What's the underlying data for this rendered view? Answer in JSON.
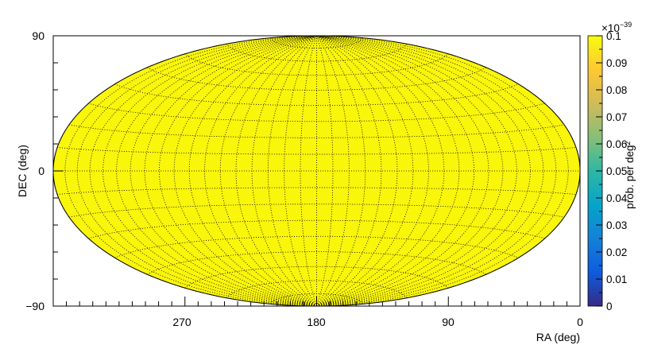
{
  "chart_data": {
    "type": "heatmap",
    "projection": "hammer-aitoff",
    "xlabel": "RA (deg)",
    "ylabel": "DEC (deg)",
    "x_range": [
      360,
      0
    ],
    "y_range": [
      -90,
      90
    ],
    "x_tick_labels": [
      "270",
      "180",
      "90",
      "0"
    ],
    "x_tick_values": [
      270,
      180,
      90,
      0
    ],
    "y_tick_labels": [
      "90",
      "0",
      "−90"
    ],
    "y_tick_values": [
      90,
      0,
      -90
    ],
    "grid": true,
    "grid_ra_step_deg": 10,
    "grid_dec_step_deg": 10,
    "uniform_value": 0.1,
    "colorbar": {
      "title": "prob. per deg²",
      "exponent_label": "×10",
      "exponent_value": "−39",
      "range": [
        0,
        0.1
      ],
      "tick_labels": [
        "0",
        "0.01",
        "0.02",
        "0.03",
        "0.04",
        "0.05",
        "0.06",
        "0.07",
        "0.08",
        "0.09",
        "0.1"
      ],
      "tick_values": [
        0,
        0.01,
        0.02,
        0.03,
        0.04,
        0.05,
        0.06,
        0.07,
        0.08,
        0.09,
        0.1
      ],
      "palette": [
        "#352a87",
        "#0f5cdd",
        "#1481d6",
        "#06a4ca",
        "#2eb7a4",
        "#87bf77",
        "#d1bb59",
        "#fec832",
        "#f9fb0e"
      ],
      "placement": "right"
    },
    "fill_color": "#f9f50b"
  }
}
